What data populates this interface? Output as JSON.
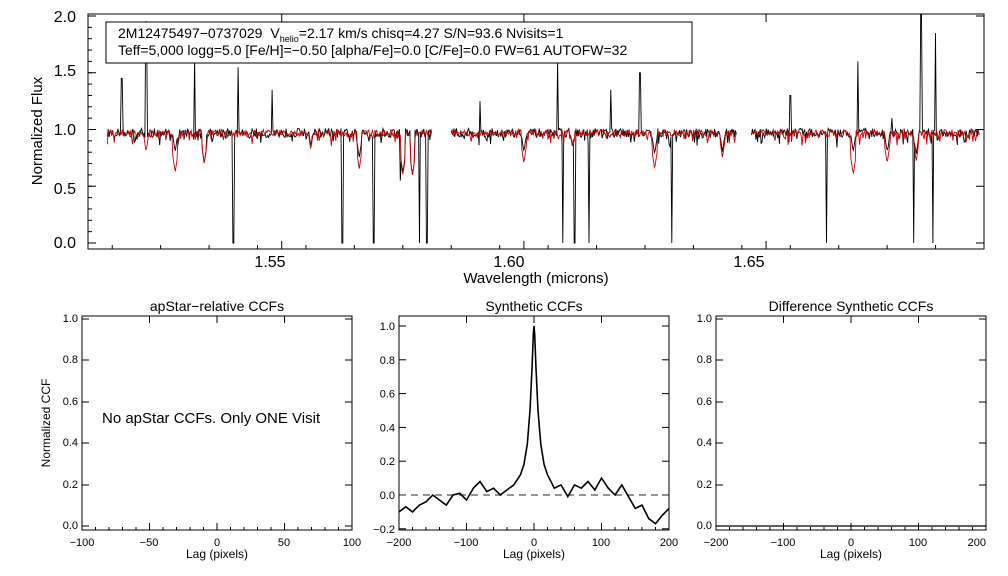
{
  "colors": {
    "observed": "#000000",
    "model": "#cc0000",
    "zero_line": "#555555"
  },
  "chart_data": [
    {
      "type": "line",
      "id": "spectrum",
      "title": "",
      "xlabel": "Wavelength (microns)",
      "ylabel": "Normalized Flux",
      "xlim": [
        1.51,
        1.695
      ],
      "ylim": [
        0.0,
        2.0
      ],
      "xticks": [
        "1.55",
        "1.60",
        "1.65"
      ],
      "yticks": [
        "0.0",
        "0.5",
        "1.0",
        "1.5",
        "2.0"
      ],
      "info_box": {
        "star_id": "2M12475497−0737029",
        "v_label": "V",
        "v_sub": "helio",
        "v_value": "=2.17 km/s  chisq=4.27  S/N=93.6  Nvisits=1",
        "line2": "Teff=5,000 logg=5.0 [Fe/H]=−0.50 [alpha/Fe]=0.0 [C/Fe]=0.0 FW=61 AUTOFW=32"
      },
      "chip_ranges": [
        [
          1.514,
          1.581
        ],
        [
          1.585,
          1.644
        ],
        [
          1.647,
          1.694
        ]
      ],
      "series": [
        {
          "name": "observed",
          "baseline": 0.97,
          "noise": 0.02,
          "absorption": [
            [
              1.522,
              0.85
            ],
            [
              1.528,
              0.8
            ],
            [
              1.534,
              0.7
            ],
            [
              1.556,
              0.85
            ],
            [
              1.566,
              0.75
            ],
            [
              1.575,
              0.62
            ],
            [
              1.577,
              0.6
            ],
            [
              1.6,
              0.8
            ],
            [
              1.61,
              0.85
            ],
            [
              1.627,
              0.78
            ],
            [
              1.641,
              0.8
            ],
            [
              1.668,
              0.8
            ],
            [
              1.675,
              0.8
            ],
            [
              1.681,
              0.78
            ]
          ],
          "emission": [
            [
              1.522,
              1.95
            ],
            [
              1.532,
              1.65
            ],
            [
              1.541,
              1.55
            ],
            [
              1.548,
              1.35
            ],
            [
              1.517,
              1.45
            ],
            [
              1.591,
              1.25
            ],
            [
              1.607,
              1.6
            ],
            [
              1.618,
              1.35
            ],
            [
              1.624,
              1.5
            ],
            [
              1.655,
              1.3
            ],
            [
              1.669,
              1.6
            ],
            [
              1.682,
              2.05
            ],
            [
              1.685,
              1.85
            ],
            [
              1.676,
              1.1
            ]
          ],
          "drops": [
            [
              1.54,
              0.0
            ],
            [
              1.5625,
              0.0
            ],
            [
              1.569,
              0.0
            ],
            [
              1.5745,
              0.55
            ],
            [
              1.5785,
              0.0
            ],
            [
              1.58,
              0.0
            ],
            [
              1.608,
              0.0
            ],
            [
              1.6105,
              0.0
            ],
            [
              1.6135,
              0.0
            ],
            [
              1.6305,
              0.0
            ],
            [
              1.6625,
              0.0
            ],
            [
              1.6805,
              0.0
            ],
            [
              1.6845,
              0.0
            ]
          ]
        },
        {
          "name": "model",
          "baseline": 0.97,
          "noise": 0.015,
          "absorption": [
            [
              1.522,
              0.8
            ],
            [
              1.528,
              0.62
            ],
            [
              1.534,
              0.7
            ],
            [
              1.556,
              0.82
            ],
            [
              1.566,
              0.65
            ],
            [
              1.575,
              0.6
            ],
            [
              1.577,
              0.6
            ],
            [
              1.6,
              0.7
            ],
            [
              1.61,
              0.85
            ],
            [
              1.627,
              0.65
            ],
            [
              1.641,
              0.75
            ],
            [
              1.668,
              0.6
            ],
            [
              1.675,
              0.7
            ],
            [
              1.681,
              0.72
            ]
          ]
        }
      ]
    },
    {
      "type": "line",
      "id": "apstar_ccf",
      "title": "apStar−relative CCFs",
      "xlabel": "Lag (pixels)",
      "ylabel": "Normalized CCF",
      "xlim": [
        -100,
        100
      ],
      "ylim": [
        -0.02,
        1.02
      ],
      "xticks": [
        "−100",
        "−50",
        "0",
        "50",
        "100"
      ],
      "yticks": [
        "0.0",
        "0.2",
        "0.4",
        "0.6",
        "0.8",
        "1.0"
      ],
      "annotation": "No apStar CCFs.  Only ONE Visit",
      "series": []
    },
    {
      "type": "line",
      "id": "synthetic_ccf",
      "title": "Synthetic CCFs",
      "xlabel": "Lag (pixels)",
      "ylabel": "",
      "xlim": [
        -200,
        200
      ],
      "ylim": [
        -0.22,
        1.08
      ],
      "xticks": [
        "−200",
        "−100",
        "0",
        "100",
        "200"
      ],
      "yticks": [
        "−0.2",
        "0.0",
        "0.2",
        "0.4",
        "0.6",
        "0.8",
        "1.0"
      ],
      "reference_line_y": 0.0,
      "series": [
        {
          "name": "synthetic CCF",
          "x": [
            -200,
            -190,
            -180,
            -170,
            -160,
            -150,
            -140,
            -130,
            -120,
            -110,
            -100,
            -90,
            -80,
            -70,
            -60,
            -50,
            -40,
            -30,
            -20,
            -15,
            -10,
            -6,
            -3,
            -1,
            0,
            1,
            3,
            6,
            10,
            15,
            20,
            30,
            40,
            50,
            60,
            70,
            80,
            90,
            100,
            110,
            120,
            130,
            140,
            150,
            160,
            170,
            180,
            190,
            200
          ],
          "y": [
            -0.1,
            -0.07,
            -0.1,
            -0.06,
            -0.04,
            0.0,
            -0.03,
            -0.06,
            0.0,
            0.01,
            -0.03,
            0.04,
            0.08,
            0.02,
            0.04,
            0.0,
            0.03,
            0.06,
            0.12,
            0.18,
            0.3,
            0.5,
            0.75,
            0.95,
            1.0,
            0.95,
            0.75,
            0.5,
            0.3,
            0.18,
            0.12,
            0.04,
            0.06,
            -0.01,
            0.06,
            0.04,
            0.08,
            0.03,
            0.1,
            0.04,
            0.0,
            0.06,
            -0.01,
            -0.08,
            -0.06,
            -0.14,
            -0.17,
            -0.12,
            -0.08
          ]
        }
      ]
    },
    {
      "type": "line",
      "id": "difference_ccf",
      "title": "Difference Synthetic CCFs",
      "xlabel": "Lag (pixels)",
      "ylabel": "",
      "xlim": [
        -200,
        200
      ],
      "ylim": [
        -0.02,
        1.02
      ],
      "xticks": [
        "−200",
        "−100",
        "0",
        "100",
        "200"
      ],
      "yticks": [
        "0.0",
        "0.2",
        "0.4",
        "0.6",
        "0.8",
        "1.0"
      ],
      "series": []
    }
  ]
}
